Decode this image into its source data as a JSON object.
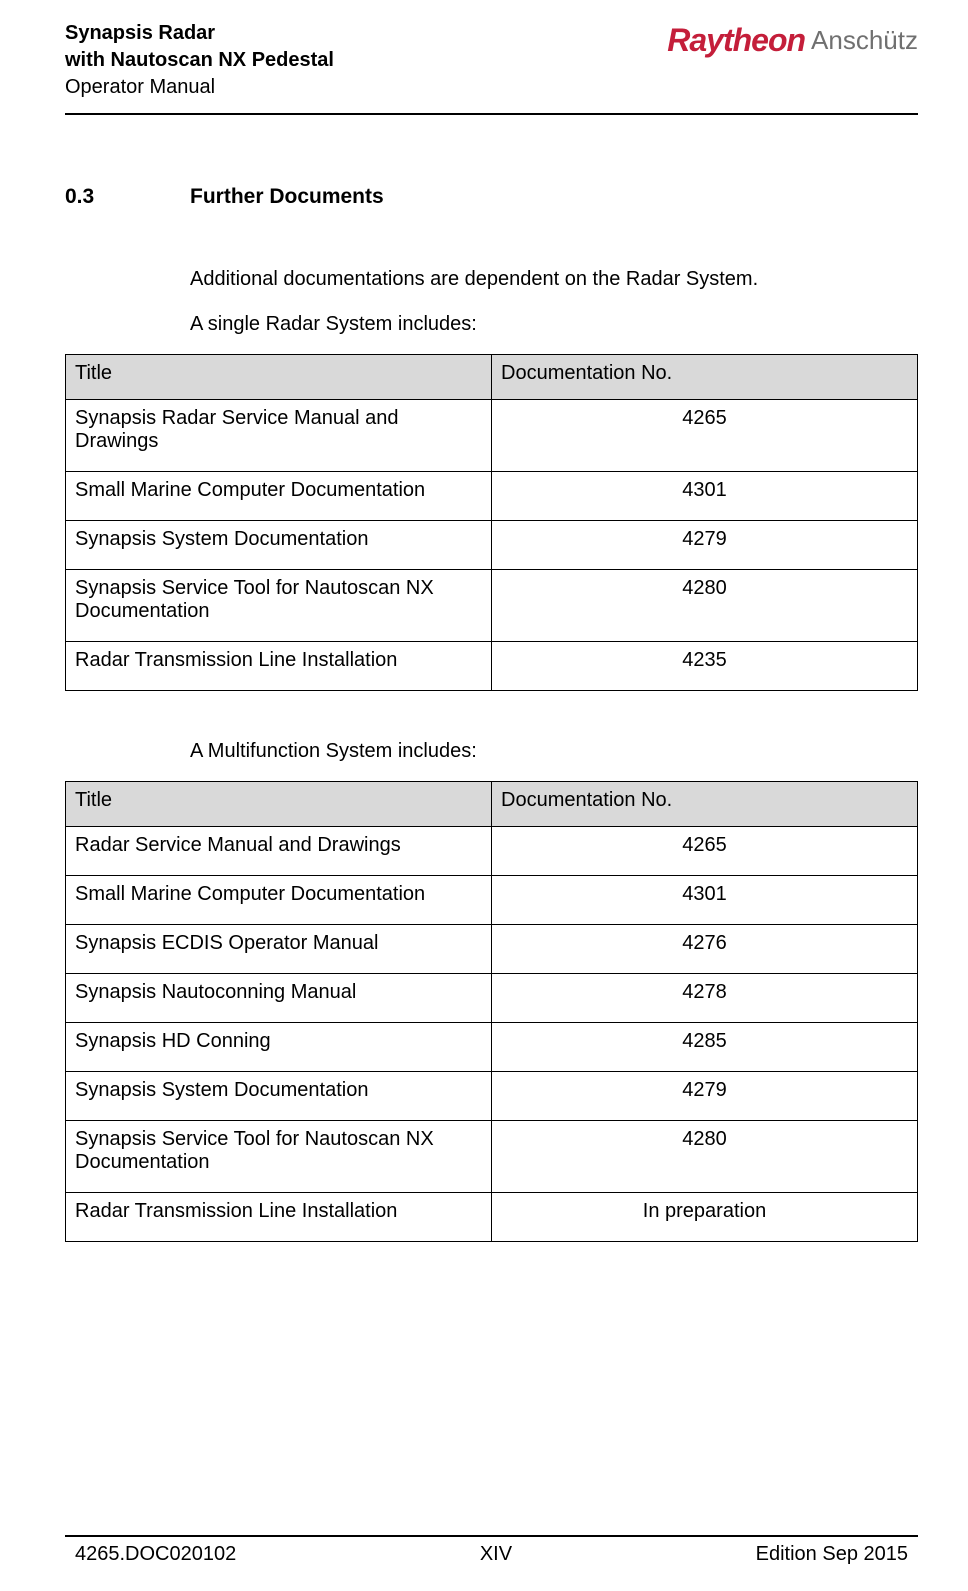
{
  "header": {
    "title_line1": "Synapsis Radar",
    "title_line2": "with Nautoscan NX Pedestal",
    "subtitle": "Operator Manual",
    "logo_brand": "Raytheon",
    "logo_sub": "Anschütz"
  },
  "section": {
    "number": "0.3",
    "title": "Further Documents",
    "intro_line1": "Additional documentations are dependent on the Radar System.",
    "intro_line2": "A single Radar System includes:",
    "intro_line3": "A Multifunction System includes:"
  },
  "table1": {
    "columns": [
      "Title",
      "Documentation No."
    ],
    "rows": [
      [
        "Synapsis Radar Service Manual and Drawings",
        "4265"
      ],
      [
        "Small Marine Computer Documentation",
        "4301"
      ],
      [
        "Synapsis System Documentation",
        "4279"
      ],
      [
        "Synapsis Service Tool for Nautoscan NX Documentation",
        "4280"
      ],
      [
        "Radar Transmission Line Installation",
        "4235"
      ]
    ]
  },
  "table2": {
    "columns": [
      "Title",
      "Documentation No."
    ],
    "rows": [
      [
        "Radar Service Manual and Drawings",
        "4265"
      ],
      [
        "Small Marine Computer Documentation",
        "4301"
      ],
      [
        "Synapsis ECDIS Operator Manual",
        "4276"
      ],
      [
        "Synapsis Nautoconning Manual",
        "4278"
      ],
      [
        "Synapsis HD Conning",
        "4285"
      ],
      [
        "Synapsis System Documentation",
        "4279"
      ],
      [
        "Synapsis Service Tool for Nautoscan NX Documentation",
        "4280"
      ],
      [
        "Radar Transmission Line Installation",
        "In preparation"
      ]
    ]
  },
  "footer": {
    "doc_id": "4265.DOC020102",
    "page": "XIV",
    "edition": "Edition Sep 2015"
  },
  "colors": {
    "table_header_bg": "#d9d9d9",
    "logo_red": "#c41e3a",
    "logo_gray": "#707070"
  }
}
